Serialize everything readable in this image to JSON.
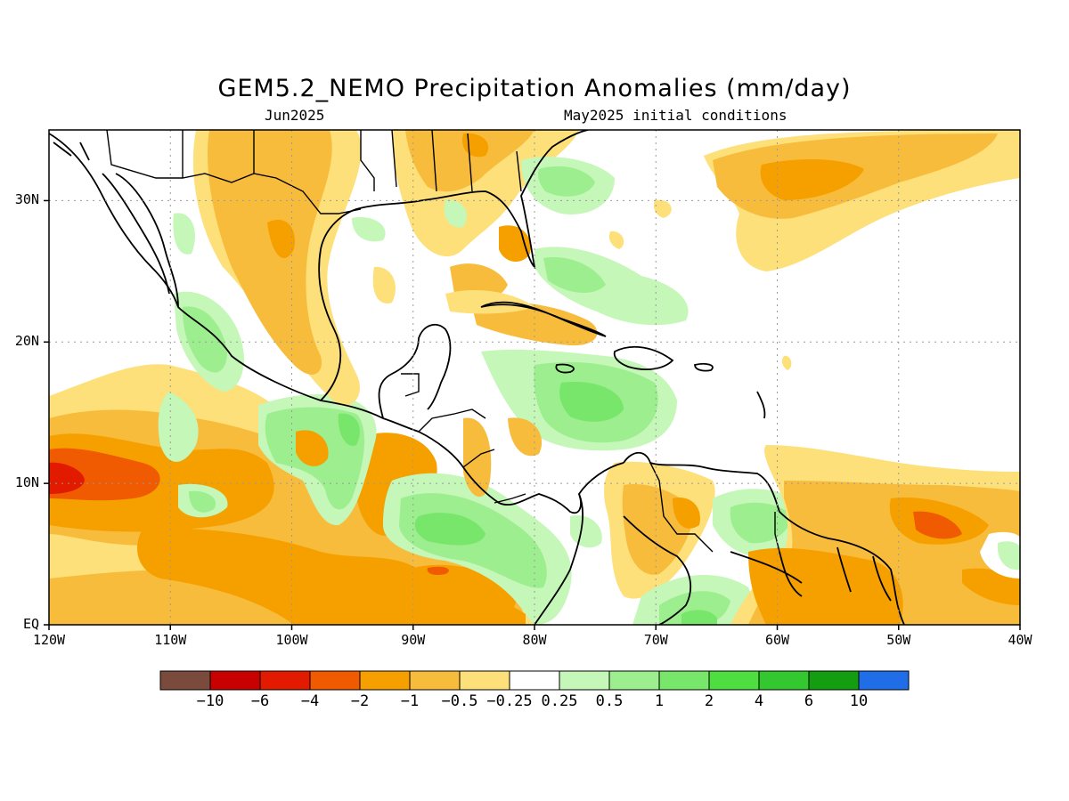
{
  "title": "GEM5.2_NEMO Precipitation Anomalies (mm/day)",
  "subtitle_left": "Jun2025",
  "subtitle_right": "May2025 initial conditions",
  "map_extent": {
    "lon_min": -120,
    "lon_max": -40,
    "lat_min": 0,
    "lat_max": 35
  },
  "lat_ticks": [
    {
      "label": "EQ",
      "lat": 0
    },
    {
      "label": "10N",
      "lat": 10
    },
    {
      "label": "20N",
      "lat": 20
    },
    {
      "label": "30N",
      "lat": 30
    }
  ],
  "lon_ticks": [
    {
      "label": "120W",
      "lon": -120
    },
    {
      "label": "110W",
      "lon": -110
    },
    {
      "label": "100W",
      "lon": -100
    },
    {
      "label": "90W",
      "lon": -90
    },
    {
      "label": "80W",
      "lon": -80
    },
    {
      "label": "70W",
      "lon": -70
    },
    {
      "label": "60W",
      "lon": -60
    },
    {
      "label": "50W",
      "lon": -50
    },
    {
      "label": "40W",
      "lon": -40
    }
  ],
  "colorbar": {
    "colors": [
      "#7a4a3c",
      "#c80000",
      "#e21a00",
      "#f05a00",
      "#f6a000",
      "#f8bc3c",
      "#fde07a",
      "#ffffff",
      "#c4f7b8",
      "#9cee8e",
      "#78e66a",
      "#4ede40",
      "#34c830",
      "#129e10",
      "#1f6ee8"
    ],
    "labels": [
      "−10",
      "−6",
      "−4",
      "−2",
      "−1",
      "−0.5",
      "−0.25",
      "0.25",
      "0.5",
      "1",
      "2",
      "4",
      "6",
      "10"
    ]
  },
  "palette": {
    "dry_light": "#fde07a",
    "dry_mid": "#f8bc3c",
    "dry_strong": "#f6a000",
    "dry_heavy": "#f05a00",
    "dry_extreme": "#e21a00",
    "wet_light": "#c4f7b8",
    "wet_mid": "#9cee8e",
    "wet_strong": "#78e66a",
    "wet_heavy": "#4ede40"
  }
}
